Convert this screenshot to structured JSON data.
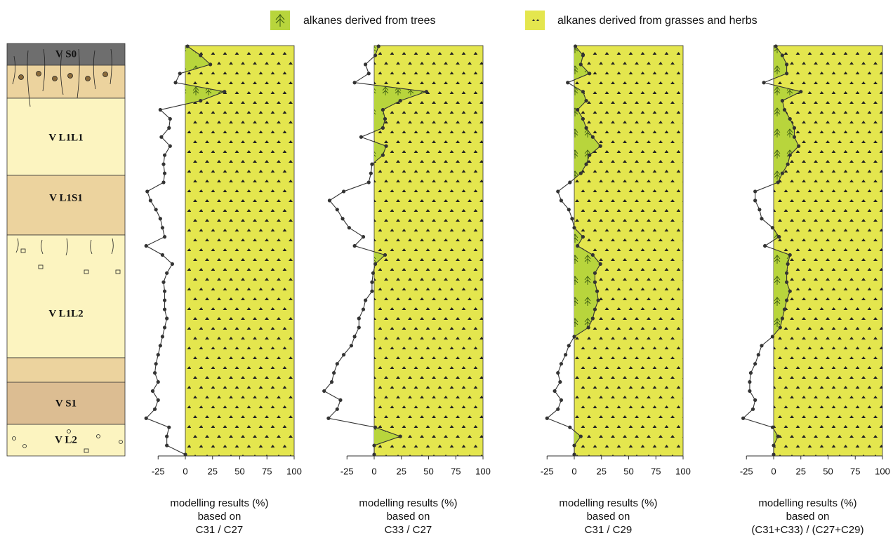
{
  "legend": [
    {
      "name": "alkanes derived from trees",
      "color": "#b8d53c"
    },
    {
      "name": "alkanes derived from grasses and herbs",
      "color": "#e4e64e"
    }
  ],
  "stratigraphy_labels": [
    "V S0",
    "V L1L1",
    "V L1S1",
    "V L1L2",
    "V S1",
    "V L2"
  ],
  "chart_data": [
    {
      "type": "line",
      "orientation": "vertical",
      "xlim": [
        -25,
        100
      ],
      "xticks": [
        -25,
        0,
        25,
        50,
        75,
        100
      ],
      "color": "#333333",
      "xlabel": [
        "modelling results (%)",
        "based on",
        "C31 / C27"
      ],
      "categories": [
        null,
        null,
        null,
        null,
        null,
        null,
        null,
        null,
        null,
        null,
        null,
        null,
        null,
        null,
        null,
        null,
        null,
        null,
        null,
        null,
        null,
        null,
        null,
        null,
        null,
        null,
        null,
        null,
        null,
        null,
        null,
        null,
        null,
        null,
        null,
        null,
        null,
        null,
        null,
        null,
        null,
        null,
        null,
        null,
        null,
        null
      ],
      "values": [
        2,
        14,
        23,
        -5,
        -9,
        36,
        14,
        -23,
        -14,
        -15,
        -22,
        -14,
        -19,
        -20,
        -19,
        -20,
        -35,
        -32,
        -27,
        -23,
        -21,
        -19,
        -36,
        -21,
        -12,
        -17,
        -20,
        -19,
        -19,
        -19,
        -17,
        -19,
        -21,
        -23,
        -25,
        -27,
        -28,
        -25,
        -30,
        -25,
        -28,
        -36,
        -15,
        -17,
        -17,
        0
      ]
    },
    {
      "type": "line",
      "orientation": "vertical",
      "xlim": [
        -25,
        100
      ],
      "xticks": [
        -25,
        0,
        25,
        50,
        75,
        100
      ],
      "color": "#333333",
      "xlabel": [
        "modelling results (%)",
        "based on",
        "C33 / C27"
      ],
      "categories": [
        null,
        null,
        null,
        null,
        null,
        null,
        null,
        null,
        null,
        null,
        null,
        null,
        null,
        null,
        null,
        null,
        null,
        null,
        null,
        null,
        null,
        null,
        null,
        null,
        null,
        null,
        null,
        null,
        null,
        null,
        null,
        null,
        null,
        null,
        null,
        null,
        null,
        null,
        null,
        null,
        null,
        null,
        null,
        null,
        null,
        null
      ],
      "values": [
        4,
        1,
        -8,
        -5,
        -18,
        48,
        24,
        8,
        10,
        8,
        -12,
        11,
        8,
        -2,
        -3,
        -5,
        -28,
        -41,
        -34,
        -29,
        -23,
        -10,
        -18,
        10,
        1,
        -1,
        -2,
        -2,
        -8,
        -10,
        -14,
        -14,
        -18,
        -21,
        -28,
        -34,
        -37,
        -39,
        -46,
        -31,
        -34,
        -42,
        1,
        24,
        0,
        0
      ]
    },
    {
      "type": "line",
      "orientation": "vertical",
      "xlim": [
        -25,
        100
      ],
      "xticks": [
        -25,
        0,
        25,
        50,
        75,
        100
      ],
      "color": "#333333",
      "xlabel": [
        "modelling results (%)",
        "based on",
        "C31 / C29"
      ],
      "categories": [
        null,
        null,
        null,
        null,
        null,
        null,
        null,
        null,
        null,
        null,
        null,
        null,
        null,
        null,
        null,
        null,
        null,
        null,
        null,
        null,
        null,
        null,
        null,
        null,
        null,
        null,
        null,
        null,
        null,
        null,
        null,
        null,
        null,
        null,
        null,
        null,
        null,
        null,
        null,
        null,
        null,
        null,
        null,
        null,
        null,
        null
      ],
      "values": [
        1,
        8,
        6,
        14,
        -6,
        8,
        11,
        3,
        8,
        11,
        17,
        24,
        14,
        11,
        6,
        -4,
        -15,
        -12,
        -5,
        -2,
        0,
        8,
        3,
        17,
        24,
        19,
        19,
        21,
        22,
        19,
        17,
        13,
        0,
        -5,
        -8,
        -12,
        -15,
        -13,
        -18,
        -12,
        -15,
        -25,
        -4,
        6,
        0,
        0
      ]
    },
    {
      "type": "line",
      "orientation": "vertical",
      "xlim": [
        -25,
        100
      ],
      "xticks": [
        -25,
        0,
        25,
        50,
        75,
        100
      ],
      "color": "#333333",
      "xlabel": [
        "modelling results (%)",
        "based on",
        "(C31+C33) / (C27+C29)"
      ],
      "categories": [
        null,
        null,
        null,
        null,
        null,
        null,
        null,
        null,
        null,
        null,
        null,
        null,
        null,
        null,
        null,
        null,
        null,
        null,
        null,
        null,
        null,
        null,
        null,
        null,
        null,
        null,
        null,
        null,
        null,
        null,
        null,
        null,
        null,
        null,
        null,
        null,
        null,
        null,
        null,
        null,
        null,
        null,
        null,
        null,
        null,
        null
      ],
      "values": [
        2,
        8,
        12,
        12,
        -9,
        25,
        8,
        10,
        15,
        19,
        19,
        23,
        15,
        13,
        8,
        4,
        -17,
        -17,
        -13,
        -11,
        -1,
        5,
        -8,
        15,
        13,
        12,
        12,
        15,
        12,
        10,
        8,
        6,
        -1,
        -11,
        -14,
        -17,
        -21,
        -22,
        -22,
        -17,
        -19,
        -28,
        -1,
        4,
        0,
        0
      ]
    }
  ]
}
